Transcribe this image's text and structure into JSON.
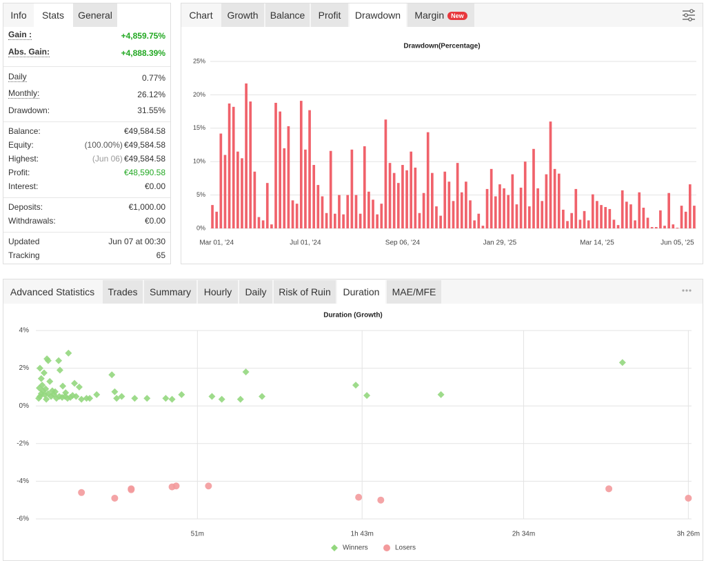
{
  "stats_panel": {
    "tabs": [
      "Info",
      "Stats",
      "General"
    ],
    "groups": [
      [
        {
          "label": "Gain :",
          "value": "+4,859.75%"
        },
        {
          "label": "Abs. Gain:",
          "value": "+4,888.39%"
        }
      ],
      [
        {
          "label": "Daily",
          "value": "0.77%"
        },
        {
          "label": "Monthly:",
          "value": "26.12%"
        },
        {
          "label": "Drawdown:",
          "value": "31.55%"
        }
      ],
      [
        {
          "label": "Balance:",
          "value": "€49,584.58"
        },
        {
          "label": "Equity:",
          "note": "(100.00%)",
          "value": "€49,584.58"
        },
        {
          "label": "Highest:",
          "note": "(Jun 06)",
          "value": "€49,584.58"
        },
        {
          "label": "Profit:",
          "value": "€48,590.58"
        },
        {
          "label": "Interest:",
          "value": "€0.00"
        }
      ],
      [
        {
          "label": "Deposits:",
          "value": "€1,000.00"
        },
        {
          "label": "Withdrawals:",
          "value": "€0.00"
        }
      ],
      [
        {
          "label": "Updated",
          "value": "Jun 07 at 00:30"
        },
        {
          "label": "Tracking",
          "value": "65"
        }
      ]
    ]
  },
  "chart_panel": {
    "tabs": [
      "Chart",
      "Growth",
      "Balance",
      "Profit",
      "Drawdown",
      "Margin"
    ],
    "badge": "New"
  },
  "advanced_panel": {
    "tabs": [
      "Advanced Statistics",
      "Trades",
      "Summary",
      "Hourly",
      "Daily",
      "Risk of Ruin",
      "Duration",
      "MAE/MFE"
    ]
  },
  "chart_data": [
    {
      "type": "bar",
      "title": "Drawdown(Percentage)",
      "color": "#f0626b",
      "grid": true,
      "categories": [
        null,
        "Mar 01, '24",
        null,
        null,
        null,
        null,
        null,
        null,
        null,
        null,
        null,
        null,
        null,
        null,
        null,
        null,
        null,
        null,
        null,
        null,
        null,
        null,
        "Jul 01, '24",
        null,
        null,
        null,
        null,
        null,
        null,
        null,
        null,
        null,
        null,
        null,
        null,
        null,
        null,
        null,
        null,
        null,
        null,
        null,
        null,
        null,
        null,
        "Sep 06, '24",
        null,
        null,
        null,
        null,
        null,
        null,
        null,
        null,
        null,
        null,
        null,
        null,
        null,
        null,
        null,
        null,
        null,
        null,
        null,
        null,
        null,
        null,
        "Jan 29, '25",
        null,
        null,
        null,
        null,
        null,
        null,
        null,
        null,
        null,
        null,
        null,
        null,
        null,
        null,
        null,
        null,
        null,
        null,
        null,
        null,
        null,
        null,
        "Mar 14, '25",
        null,
        null,
        null,
        null,
        null,
        null,
        null,
        null,
        null,
        null,
        null,
        null,
        null,
        null,
        null,
        null,
        null,
        null,
        "Jun 05, '25",
        null,
        null,
        null,
        null
      ],
      "values": [
        3.5,
        2.5,
        14.2,
        11,
        18.7,
        18.2,
        11.5,
        10.5,
        21.7,
        19,
        8.5,
        1.7,
        1.2,
        6.8,
        0.6,
        18.8,
        17.5,
        12,
        15.3,
        4.2,
        3.7,
        19.1,
        11.8,
        17.7,
        9.5,
        6.5,
        4.8,
        2.3,
        11.6,
        2.2,
        5,
        2.1,
        5,
        11.8,
        5,
        2.2,
        12.3,
        5.5,
        4.3,
        2.1,
        3.7,
        16.3,
        9.8,
        8.3,
        6.8,
        9.5,
        8.7,
        11.5,
        9.1,
        2.3,
        5.3,
        14.4,
        8.3,
        3.3,
        1.9,
        8.5,
        7,
        4.1,
        9.8,
        5.4,
        7,
        4.2,
        1.2,
        2.2,
        0.4,
        5.9,
        8.9,
        4.8,
        6.6,
        6,
        5,
        8.1,
        3.6,
        6.1,
        10,
        3.3,
        11.9,
        6,
        4.1,
        8.1,
        16,
        8.9,
        8.2,
        2.8,
        1.1,
        2.3,
        5.9,
        1.3,
        2.6,
        1.2,
        5.1,
        4.1,
        3.5,
        3.2,
        2.9,
        1.3,
        0.5,
        5.7,
        4,
        3.6,
        1.2,
        5.4,
        3.1,
        1.6,
        0.2,
        0.2,
        2.7,
        0.4,
        5.3,
        0.6,
        0.1,
        3.4,
        2.5,
        6.6,
        3.4
      ],
      "ylim": [
        0,
        25
      ],
      "yticks": [
        {
          "value": 0,
          "label": "0%"
        },
        {
          "value": 5,
          "label": "5%"
        },
        {
          "value": 10,
          "label": "10%"
        },
        {
          "value": 15,
          "label": "15%"
        },
        {
          "value": 20,
          "label": "20%"
        },
        {
          "value": 25,
          "label": "25%"
        }
      ]
    },
    {
      "type": "scatter",
      "title": "Duration (Growth)",
      "grid": true,
      "legend": "bottom",
      "xlim": [
        0,
        207
      ],
      "xticks": [
        {
          "value": 51,
          "label": "51m"
        },
        {
          "value": 103,
          "label": "1h 43m"
        },
        {
          "value": 154,
          "label": "2h 34m"
        },
        {
          "value": 206,
          "label": "3h 26m"
        }
      ],
      "ylim": [
        -6,
        4
      ],
      "yticks": [
        {
          "value": -6,
          "label": "-6%"
        },
        {
          "value": -4,
          "label": "-4%"
        },
        {
          "value": -2,
          "label": "-2%"
        },
        {
          "value": 0,
          "label": "0%"
        },
        {
          "value": 2,
          "label": "2%"
        },
        {
          "value": 4,
          "label": "4%"
        }
      ],
      "series": [
        {
          "name": "Winners",
          "color": "#93d77e",
          "marker": "diamond",
          "x": [
            3.5,
            3.9,
            7.2,
            10.3,
            1.3,
            2.6,
            7.6,
            1.7,
            4.4,
            12.2,
            13.7,
            8.5,
            24,
            66.3,
            101,
            104.5,
            127.9,
            185.2,
            46,
            55.6,
            58.7,
            64.6,
            71.4,
            41,
            43,
            35.1,
            31.2,
            27.1,
            25.5,
            24.9,
            19.2,
            17,
            16,
            14.4,
            12.7,
            11.6,
            0.9,
            1.3,
            1.7,
            2.2,
            2.8,
            3.3,
            3.9,
            4.8,
            5.7,
            6.5,
            7.4,
            8.3,
            9.2,
            10,
            1.1,
            2,
            3.1,
            5.2,
            6.1,
            9.4,
            10.9
          ],
          "values": [
            2.5,
            2.4,
            2.4,
            2.8,
            2,
            1.75,
            1.9,
            1.45,
            1.3,
            1.2,
            1,
            1.05,
            1.65,
            1.8,
            1.1,
            0.55,
            0.6,
            2.3,
            0.6,
            0.5,
            0.35,
            0.35,
            0.5,
            0.4,
            0.35,
            0.4,
            0.4,
            0.5,
            0.4,
            0.75,
            0.6,
            0.4,
            0.4,
            0.35,
            0.5,
            0.55,
            0.4,
            0.5,
            0.65,
            0.8,
            0.6,
            0.35,
            0.65,
            0.5,
            0.6,
            0.4,
            0.5,
            0.45,
            0.5,
            0.4,
            0.95,
            1.1,
            0.9,
            0.8,
            0.75,
            0.7,
            0.45
          ]
        },
        {
          "name": "Losers",
          "color": "#f39a9c",
          "marker": "circle",
          "x": [
            14.4,
            24.9,
            30.1,
            30.1,
            43,
            44.3,
            54.5,
            101.9,
            108.9,
            180.9,
            206
          ],
          "values": [
            -4.6,
            -4.9,
            -4.4,
            -4.45,
            -4.3,
            -4.25,
            -4.25,
            -4.85,
            -5,
            -4.4,
            -4.9
          ]
        }
      ]
    }
  ]
}
